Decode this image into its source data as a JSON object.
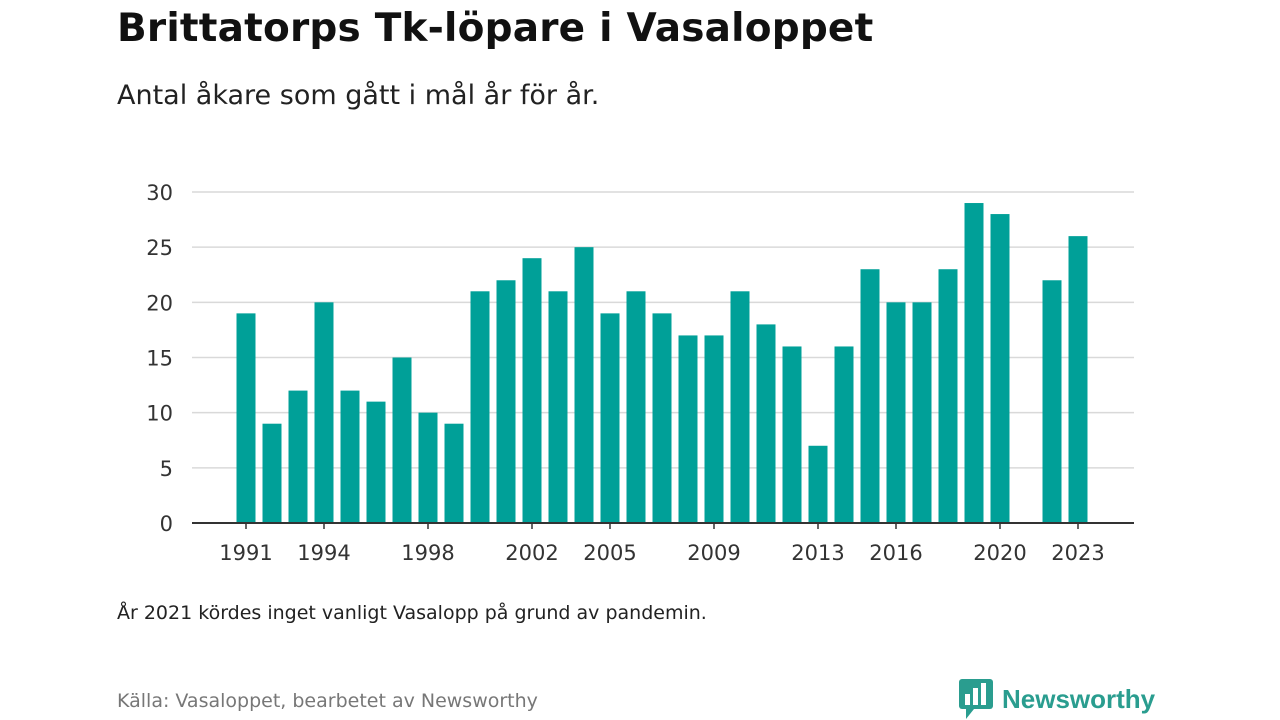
{
  "header": {
    "title": "Brittatorps Tk-löpare i Vasaloppet",
    "subtitle": "Antal åkare som gått i mål år för år."
  },
  "footer": {
    "note": "År 2021 kördes inget vanligt Vasalopp på grund av pandemin.",
    "source": "Källa: Vasaloppet, bearbetet av Newsworthy",
    "brand": "Newsworthy",
    "brand_color": "#2a9d8f"
  },
  "chart_data": {
    "type": "bar",
    "bar_color": "#00a098",
    "x": [
      1991,
      1992,
      1993,
      1994,
      1995,
      1996,
      1997,
      1998,
      1999,
      2000,
      2001,
      2002,
      2003,
      2004,
      2005,
      2006,
      2007,
      2008,
      2009,
      2010,
      2011,
      2012,
      2013,
      2014,
      2015,
      2016,
      2017,
      2018,
      2019,
      2020,
      2021,
      2022,
      2023
    ],
    "values": [
      19,
      9,
      12,
      20,
      12,
      11,
      15,
      10,
      9,
      21,
      22,
      24,
      21,
      25,
      19,
      21,
      19,
      17,
      17,
      21,
      18,
      16,
      7,
      16,
      23,
      20,
      20,
      23,
      29,
      28,
      null,
      22,
      26
    ],
    "x_tick_labels": [
      "1991",
      "1994",
      "1998",
      "2002",
      "2005",
      "2009",
      "2013",
      "2016",
      "2020",
      "2023"
    ],
    "y_ticks": [
      0,
      5,
      10,
      15,
      20,
      25,
      30
    ],
    "ylim": [
      0,
      30
    ],
    "xlabel": "",
    "ylabel": "",
    "grid": true
  }
}
